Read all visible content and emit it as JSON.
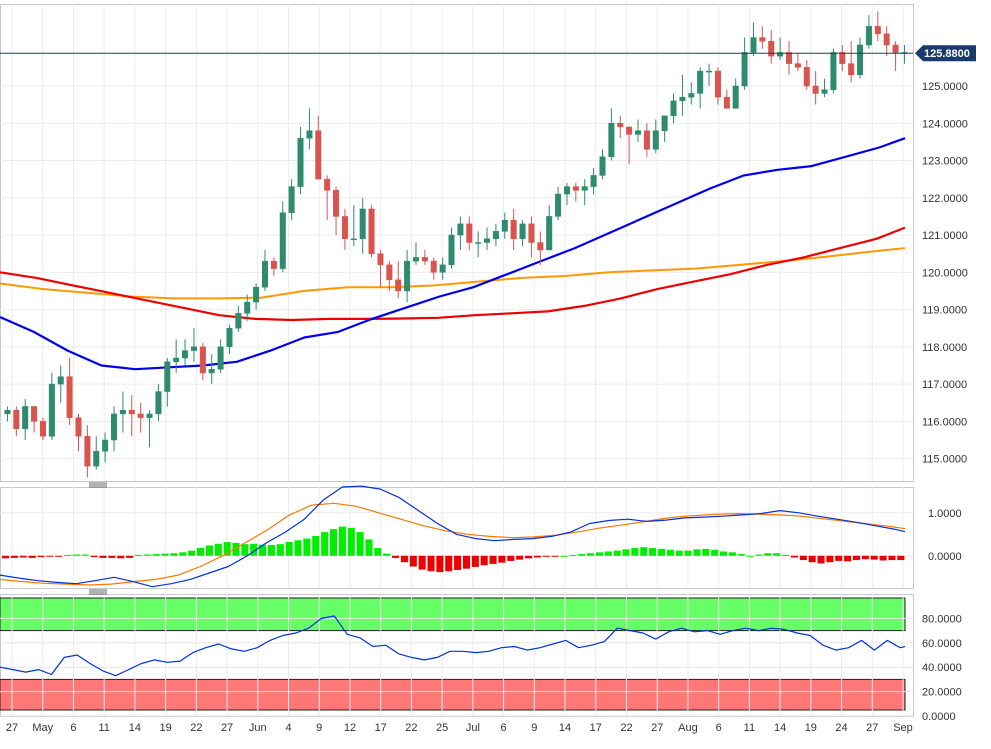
{
  "chart_data": [
    {
      "type": "candlestick",
      "title": "",
      "y_ticks": [
        "125.0000",
        "124.0000",
        "123.0000",
        "122.0000",
        "121.0000",
        "120.0000",
        "119.0000",
        "118.0000",
        "117.0000",
        "116.0000",
        "115.0000"
      ],
      "ylim": [
        114.4,
        127.2
      ],
      "last_price": "125.8800",
      "last_price_value": 125.88,
      "colors": {
        "up": "#2e8b6e",
        "down": "#d9534f",
        "sma_fast": "#0000ee",
        "sma_mid": "#ee0000",
        "sma_slow": "#ff9900",
        "last_line": "#1a3a6b"
      },
      "candles": [
        [
          116.2,
          116.4,
          116.0,
          116.3
        ],
        [
          116.3,
          116.4,
          115.6,
          115.8
        ],
        [
          115.8,
          116.6,
          115.5,
          116.4
        ],
        [
          116.4,
          116.4,
          115.7,
          116.0
        ],
        [
          116.0,
          116.1,
          115.5,
          115.6
        ],
        [
          115.6,
          117.3,
          115.5,
          117.0
        ],
        [
          117.0,
          117.5,
          116.5,
          117.2
        ],
        [
          117.2,
          117.7,
          115.9,
          116.1
        ],
        [
          116.1,
          116.2,
          115.2,
          115.6
        ],
        [
          115.6,
          115.9,
          114.5,
          114.8
        ],
        [
          114.8,
          115.6,
          114.7,
          115.2
        ],
        [
          115.2,
          115.7,
          114.9,
          115.5
        ],
        [
          115.5,
          116.4,
          115.2,
          116.2
        ],
        [
          116.2,
          116.8,
          115.7,
          116.3
        ],
        [
          116.3,
          116.7,
          115.6,
          116.2
        ],
        [
          116.2,
          116.5,
          115.7,
          116.1
        ],
        [
          116.1,
          116.3,
          115.3,
          116.2
        ],
        [
          116.2,
          117.0,
          116.0,
          116.8
        ],
        [
          116.8,
          117.7,
          116.4,
          117.6
        ],
        [
          117.6,
          118.2,
          117.3,
          117.7
        ],
        [
          117.7,
          118.2,
          117.5,
          117.9
        ],
        [
          117.9,
          118.5,
          117.6,
          118.0
        ],
        [
          118.0,
          118.1,
          117.1,
          117.3
        ],
        [
          117.3,
          117.8,
          117.0,
          117.4
        ],
        [
          117.4,
          118.2,
          117.3,
          118.0
        ],
        [
          118.0,
          118.6,
          117.8,
          118.5
        ],
        [
          118.5,
          119.1,
          118.4,
          118.9
        ],
        [
          118.9,
          119.4,
          118.7,
          119.2
        ],
        [
          119.2,
          119.7,
          119.0,
          119.6
        ],
        [
          119.6,
          120.6,
          119.5,
          120.3
        ],
        [
          120.3,
          120.4,
          119.9,
          120.1
        ],
        [
          120.1,
          121.9,
          120.0,
          121.6
        ],
        [
          121.6,
          122.5,
          121.4,
          122.3
        ],
        [
          122.3,
          123.9,
          122.1,
          123.6
        ],
        [
          123.6,
          124.4,
          123.3,
          123.8
        ],
        [
          123.8,
          124.2,
          122.6,
          122.5
        ],
        [
          122.5,
          122.6,
          121.4,
          122.2
        ],
        [
          122.2,
          122.3,
          121.0,
          121.5
        ],
        [
          121.5,
          121.7,
          120.6,
          120.9
        ],
        [
          120.9,
          121.8,
          120.7,
          120.9
        ],
        [
          120.9,
          122.0,
          120.5,
          121.7
        ],
        [
          121.7,
          121.8,
          120.4,
          120.5
        ],
        [
          120.5,
          120.6,
          119.6,
          120.2
        ],
        [
          120.2,
          120.3,
          119.5,
          119.8
        ],
        [
          119.8,
          120.3,
          119.3,
          119.5
        ],
        [
          119.5,
          120.6,
          119.2,
          120.3
        ],
        [
          120.3,
          120.8,
          120.2,
          120.4
        ],
        [
          120.4,
          120.6,
          120.2,
          120.3
        ],
        [
          120.3,
          120.4,
          119.8,
          120.0
        ],
        [
          120.0,
          120.4,
          119.8,
          120.2
        ],
        [
          120.2,
          121.2,
          120.1,
          121.0
        ],
        [
          121.0,
          121.5,
          120.6,
          121.3
        ],
        [
          121.3,
          121.5,
          120.6,
          120.8
        ],
        [
          120.8,
          121.1,
          120.4,
          120.8
        ],
        [
          120.8,
          121.2,
          120.6,
          120.9
        ],
        [
          120.9,
          121.3,
          120.7,
          121.1
        ],
        [
          121.1,
          121.6,
          120.9,
          121.4
        ],
        [
          121.4,
          121.7,
          120.6,
          120.9
        ],
        [
          120.9,
          121.4,
          120.7,
          121.3
        ],
        [
          121.3,
          121.5,
          120.4,
          120.8
        ],
        [
          120.8,
          121.1,
          120.2,
          120.6
        ],
        [
          120.6,
          121.8,
          120.6,
          121.5
        ],
        [
          121.5,
          122.3,
          121.4,
          122.1
        ],
        [
          122.1,
          122.4,
          121.8,
          122.3
        ],
        [
          122.3,
          122.4,
          121.9,
          122.2
        ],
        [
          122.2,
          122.5,
          121.8,
          122.3
        ],
        [
          122.3,
          122.8,
          122.1,
          122.6
        ],
        [
          122.6,
          123.3,
          122.5,
          123.1
        ],
        [
          123.1,
          124.4,
          123.0,
          124.0
        ],
        [
          124.0,
          124.2,
          123.6,
          123.9
        ],
        [
          123.9,
          123.9,
          122.9,
          123.7
        ],
        [
          123.7,
          124.1,
          123.5,
          123.8
        ],
        [
          123.8,
          124.0,
          123.1,
          123.3
        ],
        [
          123.3,
          124.1,
          123.2,
          123.8
        ],
        [
          123.8,
          124.2,
          123.5,
          124.2
        ],
        [
          124.2,
          124.8,
          124.0,
          124.6
        ],
        [
          124.6,
          125.3,
          124.2,
          124.7
        ],
        [
          124.7,
          125.1,
          124.5,
          124.8
        ],
        [
          124.8,
          125.5,
          124.4,
          125.4
        ],
        [
          125.4,
          125.6,
          125.0,
          125.4
        ],
        [
          125.4,
          125.5,
          124.5,
          124.7
        ],
        [
          124.7,
          124.9,
          124.4,
          124.4
        ],
        [
          124.4,
          125.2,
          124.4,
          125.0
        ],
        [
          125.0,
          126.3,
          124.9,
          125.9
        ],
        [
          125.9,
          126.7,
          125.8,
          126.3
        ],
        [
          126.3,
          126.6,
          126.0,
          126.2
        ],
        [
          126.2,
          126.5,
          125.6,
          125.8
        ],
        [
          125.8,
          126.3,
          125.7,
          125.9
        ],
        [
          125.9,
          126.2,
          125.3,
          125.6
        ],
        [
          125.6,
          125.9,
          125.4,
          125.5
        ],
        [
          125.5,
          125.7,
          124.9,
          125.0
        ],
        [
          125.0,
          125.4,
          124.5,
          124.8
        ],
        [
          124.8,
          125.2,
          124.7,
          124.9
        ],
        [
          124.9,
          126.0,
          124.8,
          125.9
        ],
        [
          125.9,
          126.1,
          125.4,
          125.6
        ],
        [
          125.6,
          126.2,
          125.1,
          125.3
        ],
        [
          125.3,
          126.3,
          125.2,
          126.1
        ],
        [
          126.1,
          126.9,
          126.0,
          126.6
        ],
        [
          126.6,
          127.0,
          126.2,
          126.4
        ],
        [
          126.4,
          126.6,
          125.8,
          126.1
        ],
        [
          126.1,
          126.2,
          125.4,
          125.9
        ],
        [
          125.9,
          126.1,
          125.6,
          125.9
        ]
      ],
      "sma_fast": [
        118.8,
        118.4,
        117.9,
        117.5,
        117.4,
        117.45,
        117.5,
        117.6,
        117.9,
        118.25,
        118.4,
        118.75,
        119.05,
        119.35,
        119.6,
        119.95,
        120.3,
        120.65,
        121.05,
        121.45,
        121.85,
        122.25,
        122.6,
        122.75,
        122.85,
        123.1,
        123.35,
        123.6
      ],
      "sma_mid": [
        120.0,
        119.85,
        119.65,
        119.45,
        119.25,
        119.05,
        118.85,
        118.75,
        118.72,
        118.75,
        118.75,
        118.76,
        118.78,
        118.85,
        118.9,
        118.95,
        119.1,
        119.3,
        119.55,
        119.75,
        119.95,
        120.2,
        120.4,
        120.65,
        120.9,
        121.2
      ],
      "sma_slow": [
        119.7,
        119.55,
        119.45,
        119.35,
        119.3,
        119.3,
        119.32,
        119.5,
        119.6,
        119.6,
        119.65,
        119.75,
        119.85,
        119.9,
        120.0,
        120.05,
        120.1,
        120.2,
        120.3,
        120.42,
        120.55,
        120.65
      ]
    },
    {
      "type": "macd",
      "title": "",
      "y_ticks": [
        "1.0000",
        "0.0000"
      ],
      "ylim": [
        -0.75,
        1.6
      ],
      "histogram": [
        -0.06,
        -0.05,
        -0.04,
        -0.05,
        -0.03,
        -0.02,
        -0.01,
        0.02,
        0.03,
        0.03,
        -0.03,
        -0.05,
        -0.05,
        -0.06,
        -0.05,
        0.02,
        0.03,
        0.04,
        0.05,
        0.06,
        0.08,
        0.12,
        0.18,
        0.24,
        0.28,
        0.32,
        0.3,
        0.27,
        0.28,
        0.26,
        0.25,
        0.27,
        0.32,
        0.36,
        0.4,
        0.46,
        0.55,
        0.62,
        0.68,
        0.65,
        0.55,
        0.38,
        0.18,
        0.05,
        -0.05,
        -0.15,
        -0.25,
        -0.32,
        -0.36,
        -0.38,
        -0.36,
        -0.33,
        -0.3,
        -0.26,
        -0.22,
        -0.19,
        -0.16,
        -0.12,
        -0.09,
        -0.06,
        -0.04,
        -0.02,
        -0.01,
        0.0,
        0.02,
        0.04,
        0.06,
        0.08,
        0.1,
        0.12,
        0.15,
        0.18,
        0.2,
        0.18,
        0.16,
        0.14,
        0.12,
        0.12,
        0.15,
        0.16,
        0.14,
        0.1,
        0.08,
        0.04,
        0.0,
        0.03,
        0.06,
        0.06,
        0.02,
        -0.04,
        -0.1,
        -0.15,
        -0.18,
        -0.15,
        -0.12,
        -0.13,
        -0.1,
        -0.08,
        -0.09,
        -0.11,
        -0.1,
        -0.1
      ],
      "line_fast": [
        -0.45,
        -0.52,
        -0.58,
        -0.62,
        -0.65,
        -0.58,
        -0.5,
        -0.6,
        -0.72,
        -0.65,
        -0.55,
        -0.4,
        -0.25,
        0.0,
        0.3,
        0.55,
        0.85,
        1.3,
        1.6,
        1.62,
        1.55,
        1.35,
        1.05,
        0.75,
        0.5,
        0.4,
        0.35,
        0.38,
        0.4,
        0.45,
        0.55,
        0.75,
        0.82,
        0.85,
        0.8,
        0.83,
        0.88,
        0.9,
        0.92,
        0.95,
        0.98,
        1.05,
        1.0,
        0.92,
        0.85,
        0.78,
        0.7,
        0.62,
        0.56
      ],
      "line_slow": [
        -0.55,
        -0.6,
        -0.64,
        -0.66,
        -0.68,
        -0.66,
        -0.6,
        -0.55,
        -0.45,
        -0.25,
        0.0,
        0.3,
        0.6,
        0.95,
        1.18,
        1.22,
        1.15,
        1.0,
        0.85,
        0.7,
        0.58,
        0.5,
        0.45,
        0.42,
        0.44,
        0.48,
        0.56,
        0.65,
        0.72,
        0.8,
        0.88,
        0.93,
        0.96,
        0.98,
        0.97,
        0.95,
        0.92,
        0.86,
        0.8,
        0.74,
        0.68,
        0.63
      ]
    },
    {
      "type": "line",
      "title": "",
      "y_ticks": [
        "80.0000",
        "60.0000",
        "40.0000",
        "20.0000",
        "0.0000"
      ],
      "ylim": [
        0,
        100
      ],
      "zones": {
        "overbought": [
          70,
          100
        ],
        "oversold": [
          0,
          30
        ],
        "overbought_color": "#66ff66",
        "oversold_color": "#ff7777"
      },
      "values": [
        40,
        38,
        36,
        38,
        34,
        48,
        50,
        43,
        37,
        33,
        38,
        43,
        46,
        44,
        45,
        52,
        56,
        59,
        55,
        53,
        56,
        62,
        66,
        68,
        72,
        80,
        82,
        67,
        64,
        57,
        58,
        51,
        48,
        46,
        48,
        53,
        53,
        52,
        53,
        56,
        57,
        54,
        56,
        59,
        62,
        56,
        58,
        61,
        72,
        70,
        68,
        63,
        69,
        72,
        69,
        70,
        67,
        70,
        72,
        70,
        72,
        71,
        68,
        66,
        58,
        54,
        56,
        62,
        54,
        62,
        56,
        57
      ]
    },
    {
      "type": "axis",
      "x_ticks": [
        "27",
        "May",
        "6",
        "11",
        "14",
        "19",
        "22",
        "27",
        "Jun",
        "4",
        "9",
        "12",
        "17",
        "22",
        "25",
        "Jul",
        "6",
        "9",
        "14",
        "17",
        "22",
        "27",
        "Aug",
        "6",
        "11",
        "14",
        "19",
        "24",
        "27",
        "Sep"
      ]
    }
  ]
}
